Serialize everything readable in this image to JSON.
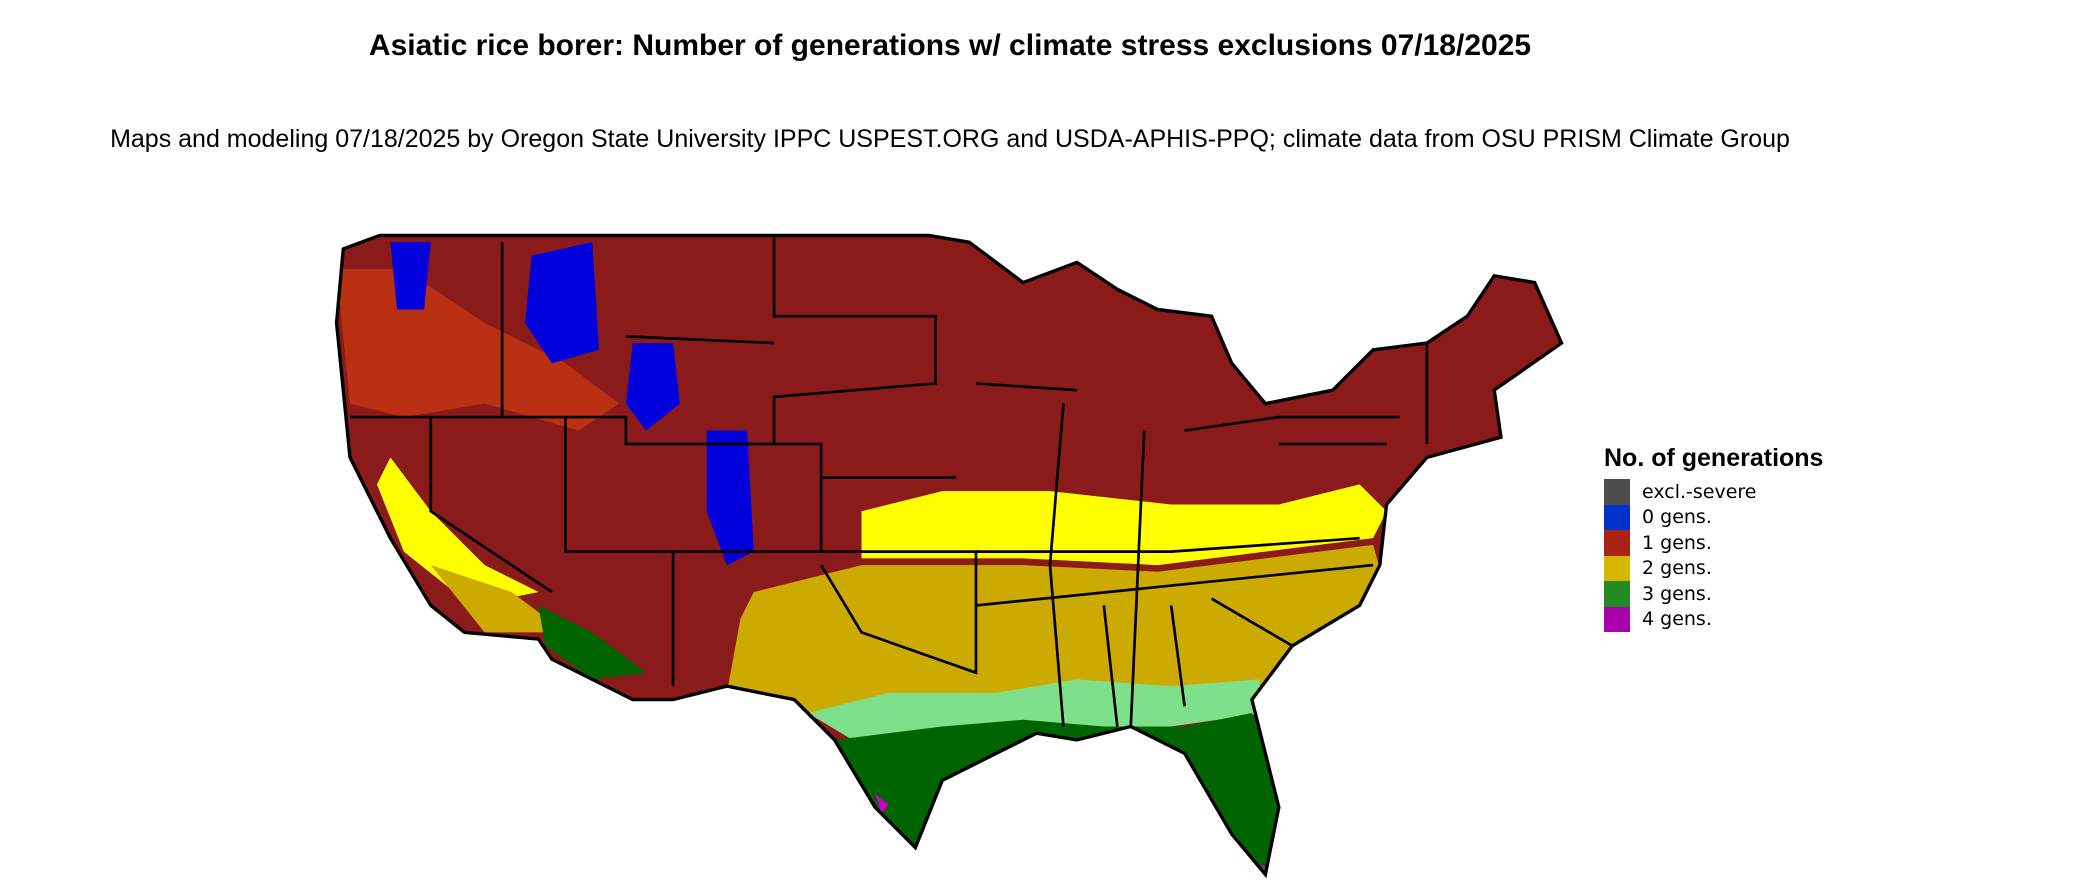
{
  "title": "Asiatic rice borer: Number of generations w/ climate stress exclusions 07/18/2025",
  "subtitle": "Maps and modeling 07/18/2025 by Oregon State University IPPC USPEST.ORG and USDA-APHIS-PPQ; climate data from OSU PRISM Climate Group",
  "legend": {
    "title": "No. of generations",
    "items": [
      {
        "label": "excl.-severe",
        "color": "#4d4d4d"
      },
      {
        "label": "0 gens.",
        "color": "#0033cc"
      },
      {
        "label": "1 gens.",
        "color": "#aa2211"
      },
      {
        "label": "2 gens.",
        "color": "#d4b800"
      },
      {
        "label": "3 gens.",
        "color": "#228b22"
      },
      {
        "label": "4 gens.",
        "color": "#aa00aa"
      }
    ]
  },
  "map_colors": {
    "one_gen_dark": "#8b1a1a",
    "one_gen_light": "#d9400f",
    "two_gen_light": "#ffff00",
    "two_gen_dark": "#ccaa00",
    "three_gen_light": "#7ee08a",
    "three_gen_dark": "#006400",
    "zero_gen": "#0000dd",
    "four_gen": "#cc00cc"
  }
}
